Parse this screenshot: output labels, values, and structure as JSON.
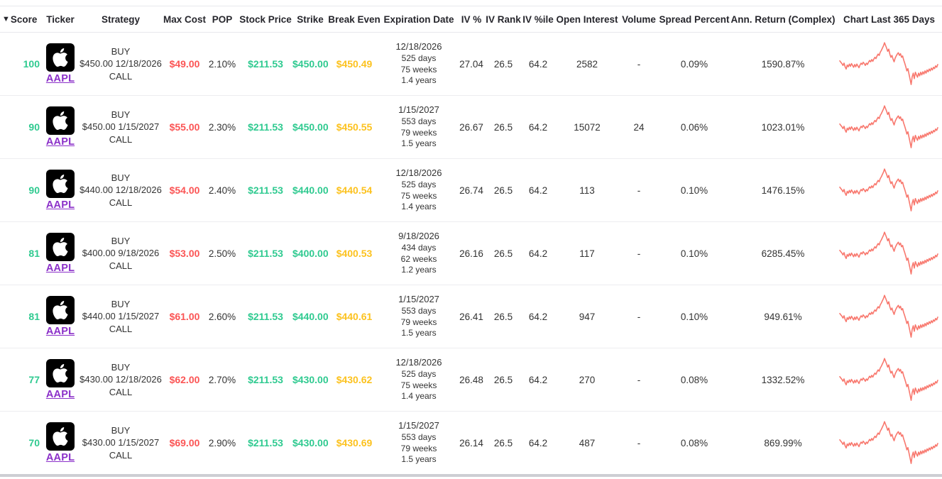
{
  "colors": {
    "green": "#2fca90",
    "red": "#fb5555",
    "yellow": "#fcc21f",
    "purple": "#8b30c9",
    "sparkline": "#f8786e",
    "header_text": "#26262c",
    "body_text": "#333333"
  },
  "table": {
    "sort_indicator": "▼",
    "columns": [
      {
        "id": "score",
        "label": "Score",
        "sorted": true
      },
      {
        "id": "ticker",
        "label": "Ticker"
      },
      {
        "id": "strategy",
        "label": "Strategy"
      },
      {
        "id": "max-cost",
        "label": "Max Cost"
      },
      {
        "id": "pop",
        "label": "POP"
      },
      {
        "id": "stock-price",
        "label": "Stock Price"
      },
      {
        "id": "strike",
        "label": "Strike"
      },
      {
        "id": "break-even",
        "label": "Break Even"
      },
      {
        "id": "expiration-date",
        "label": "Expiration Date"
      },
      {
        "id": "iv",
        "label": "IV %"
      },
      {
        "id": "iv-rank",
        "label": "IV Rank"
      },
      {
        "id": "iv-pctile",
        "label": "IV %ile"
      },
      {
        "id": "open-interest",
        "label": "Open Interest"
      },
      {
        "id": "volume",
        "label": "Volume"
      },
      {
        "id": "spread-percent",
        "label": "Spread Percent"
      },
      {
        "id": "ann-return",
        "label": "Ann. Return (Complex)"
      },
      {
        "id": "chart",
        "label": "Chart Last 365 Days"
      }
    ],
    "rows": [
      {
        "score": "100",
        "ticker": "AAPL",
        "strategy_action": "BUY",
        "strategy_detail": "$450.00 12/18/2026",
        "strategy_type": "CALL",
        "max_cost": "$49.00",
        "pop": "2.10%",
        "stock_price": "$211.53",
        "strike": "$450.00",
        "break_even": "$450.49",
        "exp_date": "12/18/2026",
        "exp_days": "525 days",
        "exp_weeks": "75 weeks",
        "exp_years": "1.4 years",
        "iv": "27.04",
        "iv_rank": "26.5",
        "iv_pctile": "64.2",
        "open_interest": "2582",
        "volume": "-",
        "spread_percent": "0.09%",
        "ann_return": "1590.87%"
      },
      {
        "score": "90",
        "ticker": "AAPL",
        "strategy_action": "BUY",
        "strategy_detail": "$450.00 1/15/2027",
        "strategy_type": "CALL",
        "max_cost": "$55.00",
        "pop": "2.30%",
        "stock_price": "$211.53",
        "strike": "$450.00",
        "break_even": "$450.55",
        "exp_date": "1/15/2027",
        "exp_days": "553 days",
        "exp_weeks": "79 weeks",
        "exp_years": "1.5 years",
        "iv": "26.67",
        "iv_rank": "26.5",
        "iv_pctile": "64.2",
        "open_interest": "15072",
        "volume": "24",
        "spread_percent": "0.06%",
        "ann_return": "1023.01%"
      },
      {
        "score": "90",
        "ticker": "AAPL",
        "strategy_action": "BUY",
        "strategy_detail": "$440.00 12/18/2026",
        "strategy_type": "CALL",
        "max_cost": "$54.00",
        "pop": "2.40%",
        "stock_price": "$211.53",
        "strike": "$440.00",
        "break_even": "$440.54",
        "exp_date": "12/18/2026",
        "exp_days": "525 days",
        "exp_weeks": "75 weeks",
        "exp_years": "1.4 years",
        "iv": "26.74",
        "iv_rank": "26.5",
        "iv_pctile": "64.2",
        "open_interest": "113",
        "volume": "-",
        "spread_percent": "0.10%",
        "ann_return": "1476.15%"
      },
      {
        "score": "81",
        "ticker": "AAPL",
        "strategy_action": "BUY",
        "strategy_detail": "$400.00 9/18/2026",
        "strategy_type": "CALL",
        "max_cost": "$53.00",
        "pop": "2.50%",
        "stock_price": "$211.53",
        "strike": "$400.00",
        "break_even": "$400.53",
        "exp_date": "9/18/2026",
        "exp_days": "434 days",
        "exp_weeks": "62 weeks",
        "exp_years": "1.2 years",
        "iv": "26.16",
        "iv_rank": "26.5",
        "iv_pctile": "64.2",
        "open_interest": "117",
        "volume": "-",
        "spread_percent": "0.10%",
        "ann_return": "6285.45%"
      },
      {
        "score": "81",
        "ticker": "AAPL",
        "strategy_action": "BUY",
        "strategy_detail": "$440.00 1/15/2027",
        "strategy_type": "CALL",
        "max_cost": "$61.00",
        "pop": "2.60%",
        "stock_price": "$211.53",
        "strike": "$440.00",
        "break_even": "$440.61",
        "exp_date": "1/15/2027",
        "exp_days": "553 days",
        "exp_weeks": "79 weeks",
        "exp_years": "1.5 years",
        "iv": "26.41",
        "iv_rank": "26.5",
        "iv_pctile": "64.2",
        "open_interest": "947",
        "volume": "-",
        "spread_percent": "0.10%",
        "ann_return": "949.61%"
      },
      {
        "score": "77",
        "ticker": "AAPL",
        "strategy_action": "BUY",
        "strategy_detail": "$430.00 12/18/2026",
        "strategy_type": "CALL",
        "max_cost": "$62.00",
        "pop": "2.70%",
        "stock_price": "$211.53",
        "strike": "$430.00",
        "break_even": "$430.62",
        "exp_date": "12/18/2026",
        "exp_days": "525 days",
        "exp_weeks": "75 weeks",
        "exp_years": "1.4 years",
        "iv": "26.48",
        "iv_rank": "26.5",
        "iv_pctile": "64.2",
        "open_interest": "270",
        "volume": "-",
        "spread_percent": "0.08%",
        "ann_return": "1332.52%"
      },
      {
        "score": "70",
        "ticker": "AAPL",
        "strategy_action": "BUY",
        "strategy_detail": "$430.00 1/15/2027",
        "strategy_type": "CALL",
        "max_cost": "$69.00",
        "pop": "2.90%",
        "stock_price": "$211.53",
        "strike": "$430.00",
        "break_even": "$430.69",
        "exp_date": "1/15/2027",
        "exp_days": "553 days",
        "exp_weeks": "79 weeks",
        "exp_years": "1.5 years",
        "iv": "26.14",
        "iv_rank": "26.5",
        "iv_pctile": "64.2",
        "open_interest": "487",
        "volume": "-",
        "spread_percent": "0.08%",
        "ann_return": "869.99%"
      }
    ]
  },
  "chart_data": {
    "type": "line",
    "title": "Chart Last 365 Days",
    "x_range_days": 365,
    "legend": "none",
    "axes": "hidden",
    "line_color": "#f8786e",
    "series": [
      {
        "name": "AAPL",
        "values": [
          55,
          52,
          49,
          45,
          50,
          42,
          37,
          46,
          42,
          48,
          43,
          49,
          45,
          41,
          47,
          42,
          48,
          44,
          40,
          46,
          50,
          47,
          52,
          49,
          45,
          50,
          47,
          52,
          56,
          53,
          58,
          54,
          59,
          63,
          60,
          66,
          70,
          67,
          74,
          78,
          83,
          88,
          95,
          89,
          83,
          76,
          81,
          70,
          63,
          67,
          59,
          53,
          61,
          66,
          70,
          73,
          67,
          71,
          63,
          66,
          57,
          50,
          42,
          33,
          38,
          26,
          15,
          3,
          20,
          28,
          16,
          30,
          24,
          19,
          28,
          22,
          30,
          24,
          31,
          26,
          33,
          28,
          35,
          31,
          37,
          33,
          39,
          35,
          41,
          38,
          44,
          41,
          47
        ]
      }
    ]
  }
}
